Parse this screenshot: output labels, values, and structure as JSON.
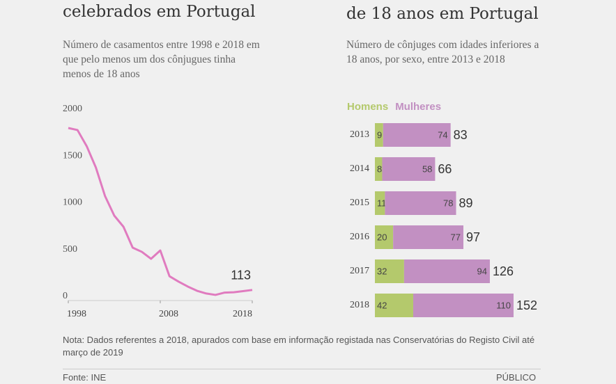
{
  "chart_data": [
    {
      "type": "line",
      "title": "celebrados em Portugal",
      "subtitle": "Número de casamentos entre 1998 e 2018 em que pelo menos um dos cônjugues tinha menos de 18 anos",
      "x": [
        1998,
        1999,
        2000,
        2001,
        2002,
        2003,
        2004,
        2005,
        2006,
        2007,
        2008,
        2009,
        2010,
        2011,
        2012,
        2013,
        2014,
        2015,
        2016,
        2017,
        2018
      ],
      "values": [
        1844,
        1822,
        1650,
        1421,
        1115,
        907,
        788,
        565,
        520,
        446,
        535,
        260,
        201,
        149,
        104,
        75,
        60,
        85,
        88,
        100,
        113
      ],
      "color": "#e07bbf",
      "xlim": [
        1998,
        2018
      ],
      "xticks": [
        1998,
        2008,
        2018
      ],
      "ylim": [
        0,
        2000
      ],
      "yticks": [
        0,
        500,
        1000,
        1500,
        2000
      ]
    },
    {
      "type": "stacked-bar-h",
      "title": "de 18 anos em Portugal",
      "subtitle": "Número de cônjuges com idades inferiores a 18 anos, por sexo, entre 2013 e 2018",
      "categories": [
        "2013",
        "2014",
        "2015",
        "2016",
        "2017",
        "2018"
      ],
      "series": [
        {
          "name": "Homens",
          "color": "#b4c96c",
          "values": [
            9,
            8,
            11,
            20,
            32,
            42
          ]
        },
        {
          "name": "Mulheres",
          "color": "#c290c2",
          "values": [
            74,
            58,
            78,
            77,
            94,
            110
          ]
        }
      ],
      "totals": [
        83,
        66,
        89,
        97,
        126,
        152
      ],
      "xlim": [
        0,
        152
      ]
    }
  ],
  "note": "Nota: Dados referentes a 2018, apurados com base em informação registada nas Conservatórias do Registo Civil até março de 2019",
  "source": "Fonte: INE",
  "credit": "PÚBLICO"
}
